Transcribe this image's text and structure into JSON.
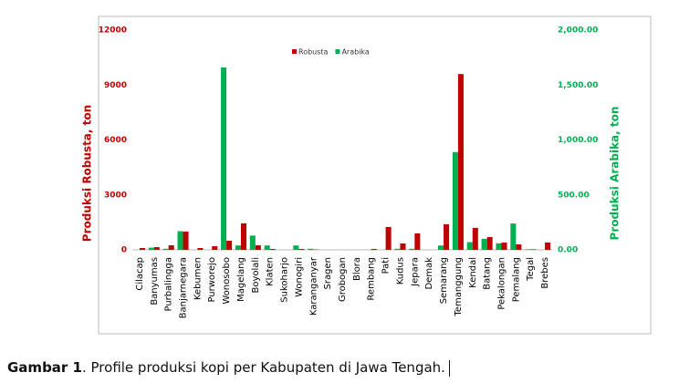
{
  "chart_data": {
    "type": "bar",
    "y_label": "Produksi Robusta, ton",
    "y2_label": "Produksi Arabika, ton",
    "categories": [
      "Cilacap",
      "Banyumas",
      "Purbalingga",
      "Banjarnegara",
      "Kebumen",
      "Purworejo",
      "Wonosobo",
      "Magelang",
      "Boyolali",
      "Klaten",
      "Sukoharjo",
      "Wonogiri",
      "Karanganyar",
      "Sragen",
      "Grobogan",
      "Blora",
      "Rembang",
      "Pati",
      "Kudus",
      "Jepara",
      "Demak",
      "Semarang",
      "Temanggung",
      "Kendal",
      "Batang",
      "Pekalongan",
      "Pemalang",
      "Tegal",
      "Brebes"
    ],
    "series": [
      {
        "name": "Robusta",
        "color": "#c00000",
        "values": [
          100,
          150,
          250,
          1000,
          100,
          200,
          500,
          1450,
          250,
          50,
          0,
          50,
          20,
          0,
          0,
          0,
          50,
          1250,
          350,
          900,
          0,
          1400,
          9600,
          1200,
          700,
          400,
          300,
          30,
          400
        ]
      },
      {
        "name": "Arabika",
        "color": "#00b050",
        "axis": "y2",
        "values": [
          0,
          20,
          10,
          170,
          0,
          0,
          1660,
          40,
          130,
          40,
          0,
          40,
          10,
          0,
          0,
          0,
          0,
          0,
          10,
          10,
          0,
          40,
          890,
          70,
          100,
          60,
          240,
          5,
          0
        ]
      }
    ],
    "ylim": [
      0,
      12000
    ],
    "yticks": [
      0,
      3000,
      6000,
      9000,
      12000
    ],
    "y2lim": [
      0,
      2000
    ],
    "y2ticks": [
      {
        "value": 0,
        "label": "0.00"
      },
      {
        "value": 500,
        "label": "500.00"
      },
      {
        "value": 1000,
        "label": "1,000.00"
      },
      {
        "value": 1500,
        "label": "1,500.00"
      },
      {
        "value": 2000,
        "label": "2,000.00"
      }
    ],
    "grid": false,
    "legend": "top"
  },
  "caption": {
    "label": "Gambar 1",
    "text": ". Profile produksi kopi per Kabupaten di Jawa Tengah."
  }
}
